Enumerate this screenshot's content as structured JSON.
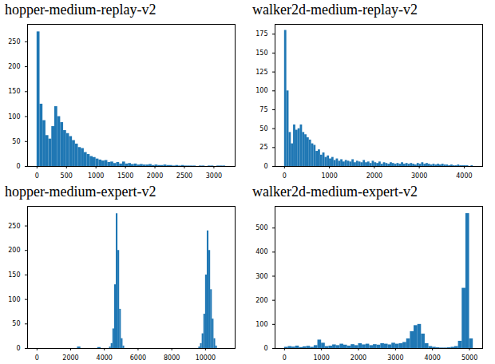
{
  "chart_data": [
    {
      "type": "histogram",
      "title": "hopper-medium-replay-v2",
      "color": "#1f77b4",
      "grid": false,
      "bins": [
        0,
        50,
        100,
        150,
        200,
        250,
        300,
        350,
        400,
        450,
        500,
        550,
        600,
        650,
        700,
        750,
        800,
        850,
        900,
        950,
        1000,
        1050,
        1100,
        1150,
        1200,
        1250,
        1300,
        1350,
        1400,
        1450,
        1500,
        1550,
        1600,
        1650,
        1700,
        1750,
        1800,
        1850,
        1900,
        1950,
        2000,
        2050,
        2100,
        2150,
        2200,
        2250,
        2300,
        2350,
        2400,
        2450,
        2500,
        2550,
        2600,
        2650,
        2700,
        2750,
        2800,
        2850,
        2900,
        2950,
        3000,
        3050,
        3100,
        3150,
        3200
      ],
      "counts": [
        270,
        125,
        92,
        62,
        55,
        80,
        120,
        100,
        88,
        72,
        66,
        60,
        52,
        45,
        38,
        36,
        28,
        24,
        20,
        18,
        15,
        13,
        11,
        12,
        8,
        9,
        6,
        8,
        5,
        9,
        5,
        6,
        4,
        5,
        3,
        4,
        3,
        3,
        4,
        2,
        3,
        2,
        2,
        3,
        2,
        2,
        1,
        2,
        1,
        2,
        1,
        1,
        1,
        1,
        0,
        1,
        1,
        0,
        1,
        1,
        0,
        1,
        1,
        1
      ],
      "xlim": [
        -160,
        3360
      ],
      "xticks": [
        0,
        500,
        1000,
        1500,
        2000,
        2500,
        3000
      ],
      "ylim": [
        0,
        285
      ],
      "yticks": [
        0,
        50,
        100,
        150,
        200,
        250
      ]
    },
    {
      "type": "histogram",
      "title": "walker2d-medium-replay-v2",
      "color": "#1f77b4",
      "grid": false,
      "bins": [
        0,
        50,
        100,
        150,
        200,
        250,
        300,
        350,
        400,
        450,
        500,
        550,
        600,
        650,
        700,
        750,
        800,
        850,
        900,
        950,
        1000,
        1050,
        1100,
        1150,
        1200,
        1250,
        1300,
        1350,
        1400,
        1450,
        1500,
        1550,
        1600,
        1650,
        1700,
        1750,
        1800,
        1850,
        1900,
        1950,
        2000,
        2050,
        2100,
        2150,
        2200,
        2250,
        2300,
        2350,
        2400,
        2450,
        2500,
        2550,
        2600,
        2650,
        2700,
        2750,
        2800,
        2850,
        2900,
        2950,
        3000,
        3050,
        3100,
        3150,
        3200,
        3250,
        3300,
        3350,
        3400,
        3450,
        3500,
        3550,
        3600,
        3650,
        3700,
        3750,
        3800,
        3850,
        3900,
        3950,
        4000,
        4050,
        4100,
        4150,
        4200
      ],
      "counts": [
        180,
        100,
        45,
        30,
        55,
        48,
        50,
        55,
        45,
        42,
        38,
        35,
        30,
        28,
        20,
        22,
        15,
        18,
        12,
        14,
        10,
        12,
        8,
        10,
        7,
        9,
        6,
        8,
        7,
        6,
        9,
        5,
        7,
        6,
        5,
        8,
        5,
        6,
        4,
        7,
        5,
        4,
        6,
        3,
        5,
        4,
        3,
        5,
        4,
        3,
        4,
        3,
        5,
        3,
        4,
        3,
        4,
        3,
        2,
        4,
        3,
        5,
        3,
        4,
        3,
        2,
        3,
        2,
        3,
        2,
        3,
        2,
        2,
        1,
        2,
        1,
        1,
        2,
        1,
        1,
        1,
        1,
        0,
        1
      ],
      "xlim": [
        -210,
        4410
      ],
      "xticks": [
        0,
        1000,
        2000,
        3000,
        4000
      ],
      "ylim": [
        0,
        188
      ],
      "yticks": [
        0,
        25,
        50,
        75,
        100,
        125,
        150,
        175
      ]
    },
    {
      "type": "histogram",
      "title": "hopper-medium-expert-v2",
      "color": "#1f77b4",
      "grid": false,
      "bins": [
        0,
        2400,
        2600,
        3600,
        3800,
        4300,
        4400,
        4500,
        4600,
        4700,
        4800,
        4900,
        5000,
        5100,
        5200,
        9600,
        9700,
        9800,
        9900,
        10000,
        10100,
        10200,
        10300,
        10400,
        10500,
        10600,
        10700
      ],
      "counts": [
        0,
        3,
        0,
        2,
        0,
        3,
        10,
        40,
        130,
        275,
        200,
        80,
        20,
        5,
        0,
        3,
        10,
        30,
        70,
        150,
        240,
        200,
        120,
        60,
        20,
        5
      ],
      "xlim": [
        -560,
        11760
      ],
      "xticks": [
        0,
        2000,
        4000,
        6000,
        8000,
        10000
      ],
      "ylim": [
        0,
        290
      ],
      "yticks": [
        0,
        50,
        100,
        150,
        200,
        250
      ]
    },
    {
      "type": "histogram",
      "title": "walker2d-medium-expert-v2",
      "color": "#1f77b4",
      "grid": false,
      "bins": [
        0,
        100,
        200,
        300,
        400,
        500,
        600,
        700,
        800,
        900,
        1000,
        1100,
        1200,
        1300,
        1400,
        1500,
        1600,
        1700,
        1800,
        1900,
        2000,
        2100,
        2200,
        2300,
        2400,
        2500,
        2600,
        2700,
        2800,
        2900,
        3000,
        3100,
        3200,
        3300,
        3400,
        3500,
        3600,
        3700,
        3800,
        3900,
        4000,
        4100,
        4200,
        4300,
        4400,
        4500,
        4600,
        4700,
        4800,
        4900,
        5000,
        5100
      ],
      "counts": [
        5,
        8,
        6,
        10,
        4,
        7,
        9,
        5,
        12,
        35,
        22,
        8,
        10,
        15,
        12,
        18,
        14,
        10,
        16,
        12,
        20,
        15,
        18,
        12,
        16,
        14,
        20,
        18,
        15,
        22,
        18,
        20,
        25,
        40,
        70,
        95,
        100,
        60,
        20,
        8,
        5,
        3,
        2,
        2,
        3,
        5,
        8,
        30,
        250,
        560,
        40
      ],
      "xlim": [
        -255,
        5355
      ],
      "xticks": [
        0,
        1000,
        2000,
        3000,
        4000,
        5000
      ],
      "ylim": [
        0,
        590
      ],
      "yticks": [
        0,
        100,
        200,
        300,
        400,
        500
      ]
    }
  ]
}
